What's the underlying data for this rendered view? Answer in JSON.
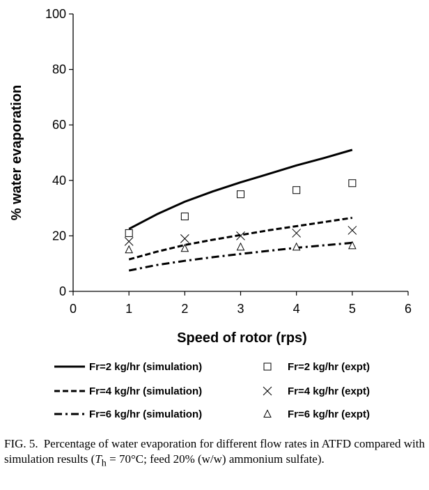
{
  "chart_data": {
    "type": "line",
    "xlabel": "Speed of rotor (rps)",
    "ylabel": "% water evaporation",
    "xlim": [
      0,
      6
    ],
    "ylim": [
      0,
      100
    ],
    "x_ticks": [
      0,
      1,
      2,
      3,
      4,
      5,
      6
    ],
    "y_ticks": [
      0,
      20,
      40,
      60,
      80,
      100
    ],
    "x_tick_labels": [
      "0",
      "1",
      "2",
      "3",
      "4",
      "5",
      "6"
    ],
    "y_tick_labels": [
      "0",
      "20",
      "40",
      "60",
      "80",
      "100"
    ],
    "grid": false,
    "legend_position": "bottom",
    "series": [
      {
        "name": "Fr=2 kg/hr (simulation)",
        "kind": "line",
        "line_style": "solid",
        "x": [
          1,
          1.5,
          2,
          2.5,
          3,
          3.5,
          4,
          4.5,
          5
        ],
        "y": [
          22.5,
          27.8,
          32.3,
          36.0,
          39.3,
          42.3,
          45.4,
          48.1,
          51.0
        ]
      },
      {
        "name": "Fr=4 kg/hr (simulation)",
        "kind": "line",
        "line_style": "dashed",
        "x": [
          1,
          1.5,
          2,
          2.5,
          3,
          3.5,
          4,
          4.5,
          5
        ],
        "y": [
          11.5,
          14.3,
          16.7,
          18.6,
          20.3,
          22.0,
          23.5,
          25.0,
          26.5
        ]
      },
      {
        "name": "Fr=6 kg/hr (simulation)",
        "kind": "line",
        "line_style": "dash-dot",
        "x": [
          1,
          1.5,
          2,
          2.5,
          3,
          3.5,
          4,
          4.5,
          5
        ],
        "y": [
          7.5,
          9.5,
          11.0,
          12.3,
          13.5,
          14.6,
          15.7,
          16.6,
          17.5
        ]
      },
      {
        "name": "Fr=2 kg/hr (expt)",
        "kind": "marker",
        "marker": "square",
        "x": [
          1,
          2,
          3,
          4,
          5
        ],
        "y": [
          21,
          27,
          35,
          36.5,
          39
        ]
      },
      {
        "name": "Fr=4 kg/hr (expt)",
        "kind": "marker",
        "marker": "x",
        "x": [
          1,
          2,
          3,
          4,
          5
        ],
        "y": [
          18,
          19,
          20,
          21,
          22
        ]
      },
      {
        "name": "Fr=6 kg/hr (expt)",
        "kind": "marker",
        "marker": "triangle",
        "x": [
          1,
          2,
          3,
          4,
          5
        ],
        "y": [
          15,
          15.5,
          16,
          16,
          16.5
        ]
      }
    ]
  },
  "caption": {
    "label": "FIG. 5.",
    "text_before": "Percentage of water evaporation for different flow rates in ATFD compared with simulation results (",
    "symbol": "T",
    "subscript": "h",
    "text_after": " = 70°C; feed 20% (w/w) ammonium sulfate)."
  }
}
